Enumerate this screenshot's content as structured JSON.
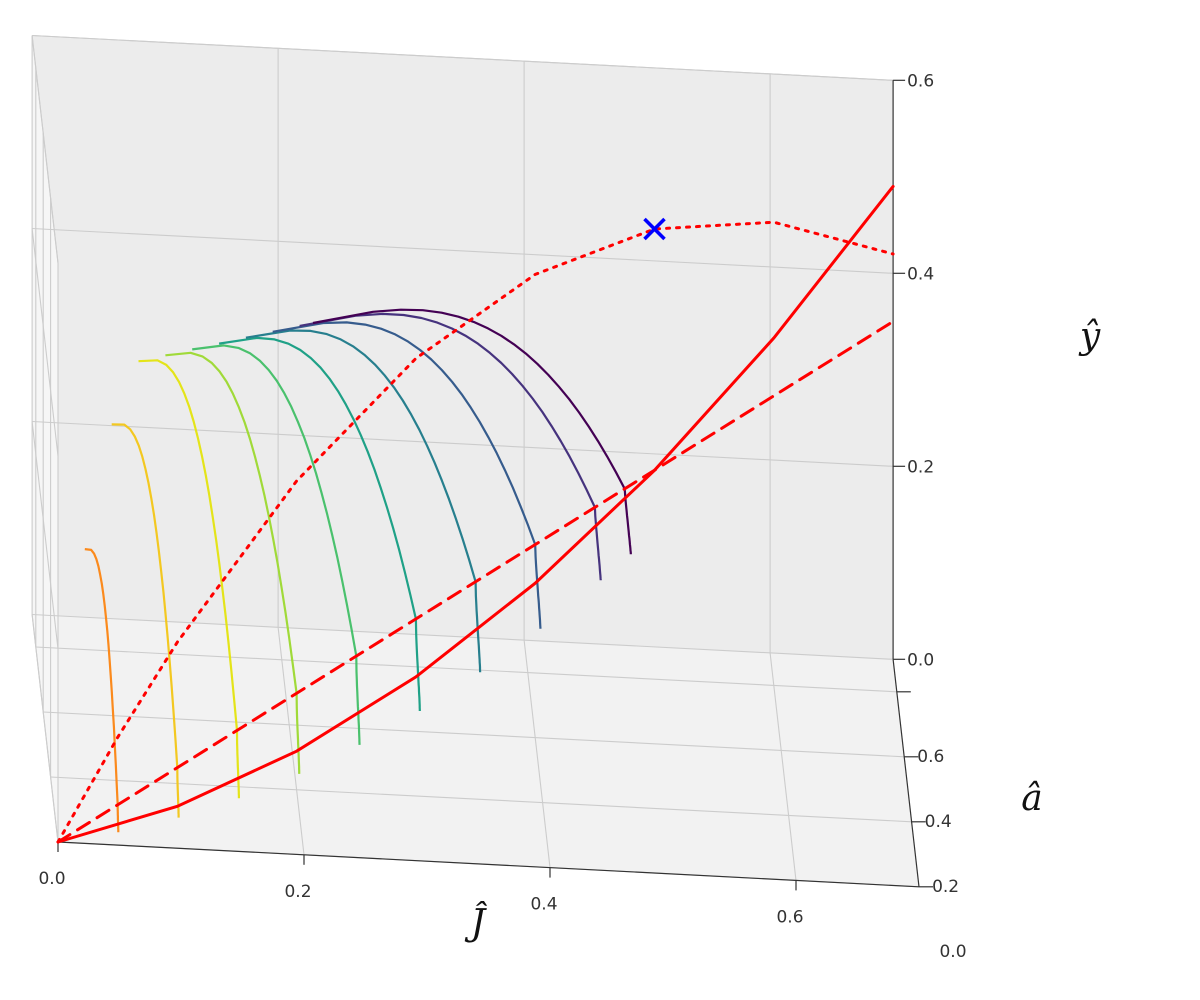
{
  "chart_data": {
    "type": "line",
    "projection": "3d",
    "axes": {
      "x": {
        "label": "Ĵ",
        "ticks": [
          "0.0",
          "0.2",
          "0.4",
          "0.6"
        ],
        "range": [
          0,
          0.7
        ]
      },
      "y": {
        "label": "â",
        "ticks": [
          "0.0",
          "0.2",
          "0.4",
          "0.6"
        ],
        "range": [
          0,
          0.7
        ]
      },
      "z": {
        "label": "ŷ",
        "ticks": [
          "0.0",
          "0.2",
          "0.4",
          "0.6"
        ],
        "range": [
          0,
          0.6
        ]
      }
    },
    "grid": true,
    "legend": "none",
    "colors": {
      "boundary": "#ff0000",
      "marker": "#0000ff",
      "pane": "#f2f2f2",
      "gridline": "#cccccc",
      "axis": "#333333"
    },
    "boundary_curves": [
      {
        "name": "",
        "style": "solid",
        "color": "#ff0000",
        "points": [
          [
            0,
            0,
            0
          ],
          [
            0.1,
            0.1,
            0.01
          ],
          [
            0.2,
            0.2,
            0.04
          ],
          [
            0.3,
            0.3,
            0.09
          ],
          [
            0.4,
            0.4,
            0.16
          ],
          [
            0.5,
            0.5,
            0.25
          ],
          [
            0.6,
            0.6,
            0.36
          ],
          [
            0.7,
            0.7,
            0.49
          ]
        ]
      },
      {
        "name": "",
        "style": "dashed",
        "color": "#ff0000",
        "points": [
          [
            0,
            0,
            0
          ],
          [
            0.7,
            0.7,
            0.35
          ]
        ]
      },
      {
        "name": "",
        "style": "dotted",
        "color": "#ff0000",
        "points": [
          [
            0,
            0,
            0
          ],
          [
            0.05,
            0.05,
            0.095
          ],
          [
            0.1,
            0.1,
            0.18
          ],
          [
            0.2,
            0.2,
            0.32
          ],
          [
            0.3,
            0.3,
            0.42
          ],
          [
            0.4,
            0.4,
            0.48
          ],
          [
            0.5,
            0.5,
            0.5
          ],
          [
            0.6,
            0.6,
            0.48
          ],
          [
            0.7,
            0.7,
            0.42
          ]
        ]
      }
    ],
    "marker": {
      "symbol": "x",
      "color": "#0000ff",
      "point": [
        0.5,
        0.5,
        0.5
      ]
    },
    "trajectories": [
      {
        "c": 0.05,
        "color": "#fb8a1d"
      },
      {
        "c": 0.1,
        "color": "#f3c821"
      },
      {
        "c": 0.15,
        "color": "#e4e419"
      },
      {
        "c": 0.2,
        "color": "#a0da39"
      },
      {
        "c": 0.25,
        "color": "#4ac16d"
      },
      {
        "c": 0.3,
        "color": "#1fa187"
      },
      {
        "c": 0.35,
        "color": "#277f8e"
      },
      {
        "c": 0.4,
        "color": "#365c8d"
      },
      {
        "c": 0.45,
        "color": "#46337e"
      },
      {
        "c": 0.475,
        "color": "#440154"
      }
    ]
  }
}
